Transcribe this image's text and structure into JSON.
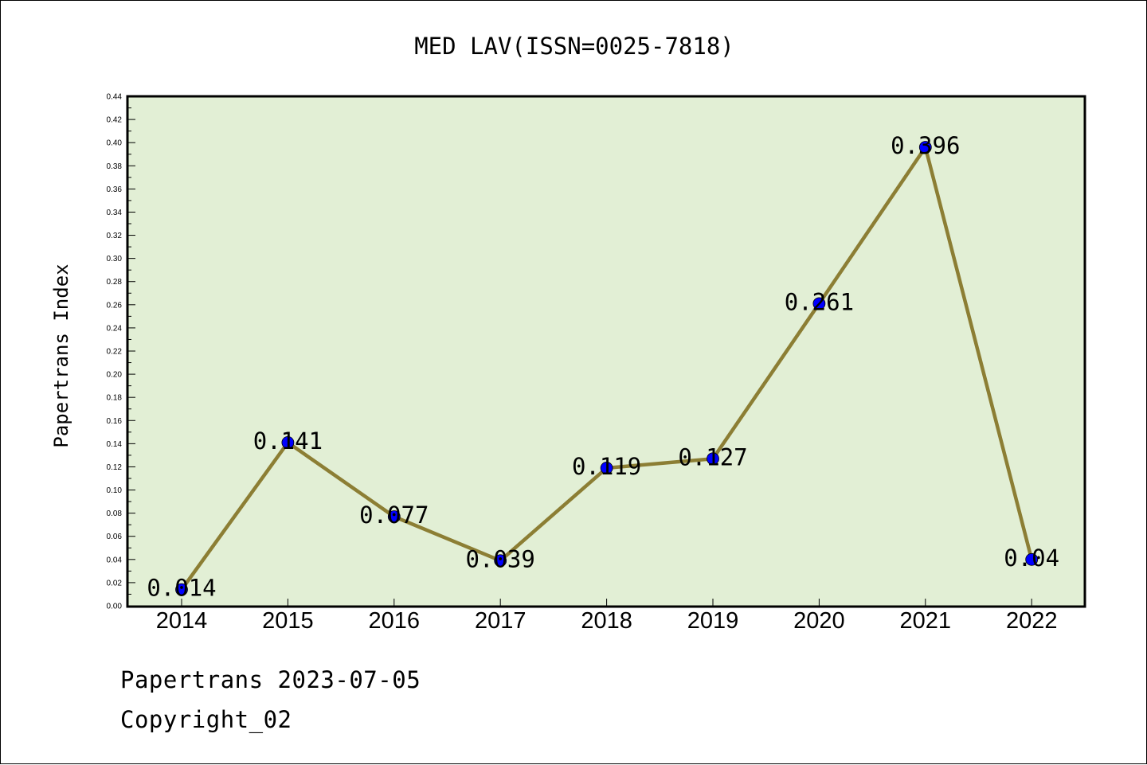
{
  "chart_data": {
    "type": "line",
    "title": "MED LAV(ISSN=0025-7818)",
    "xlabel": "",
    "ylabel": "Papertrans Index",
    "categories": [
      "2014",
      "2015",
      "2016",
      "2017",
      "2018",
      "2019",
      "2020",
      "2021",
      "2022"
    ],
    "values": [
      0.014,
      0.141,
      0.077,
      0.039,
      0.119,
      0.127,
      0.261,
      0.396,
      0.04
    ],
    "data_labels": [
      "0.014",
      "0.141",
      "0.077",
      "0.039",
      "0.119",
      "0.127",
      "0.261",
      "0.396",
      "0.04"
    ],
    "ylim": [
      0,
      0.44
    ],
    "ytick_step": 0.02,
    "y_tick_labels": [
      "0.00",
      "0.02",
      "0.04",
      "0.06",
      "0.08",
      "0.10",
      "0.12",
      "0.14",
      "0.16",
      "0.18",
      "0.20",
      "0.22",
      "0.24",
      "0.26",
      "0.28",
      "0.30",
      "0.32",
      "0.34",
      "0.36",
      "0.38",
      "0.40",
      "0.42",
      "0.44"
    ],
    "grid": false,
    "colors": {
      "plot_background": "#e2efd5",
      "line": "#8c7e34",
      "marker": "#0000ff"
    }
  },
  "footer": {
    "line1": "Papertrans 2023-07-05",
    "line2": "Copyright_02"
  }
}
